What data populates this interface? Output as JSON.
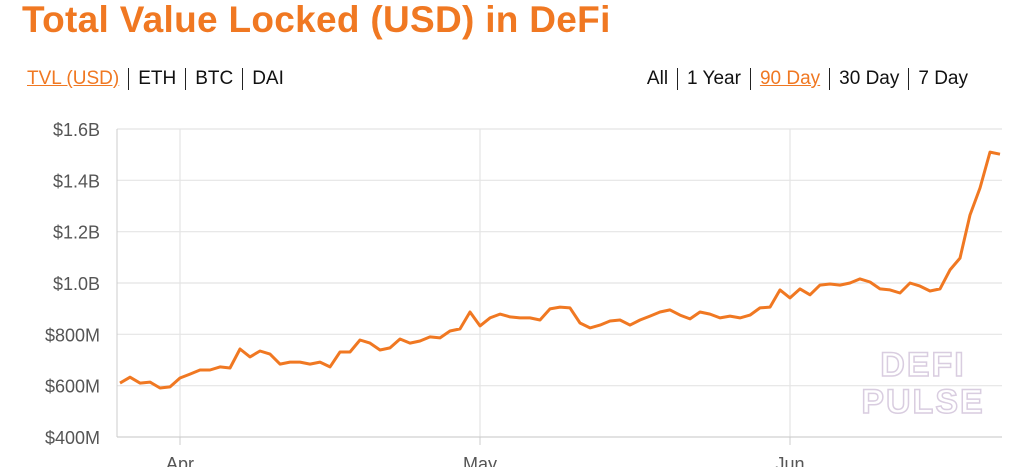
{
  "header": {
    "title": "Total Value Locked (USD) in DeFi"
  },
  "tabs": {
    "left": [
      {
        "label": "TVL (USD)",
        "active": true
      },
      {
        "label": "ETH",
        "active": false
      },
      {
        "label": "BTC",
        "active": false
      },
      {
        "label": "DAI",
        "active": false
      }
    ],
    "right": [
      {
        "label": "All",
        "active": false
      },
      {
        "label": "1 Year",
        "active": false
      },
      {
        "label": "90 Day",
        "active": true
      },
      {
        "label": "30 Day",
        "active": false
      },
      {
        "label": "7 Day",
        "active": false
      }
    ]
  },
  "chart_data": {
    "type": "line",
    "color": "#f07822",
    "grid": true,
    "watermark": [
      "DEFI",
      "PULSE"
    ],
    "categories": [
      null,
      null,
      null,
      null,
      null,
      null,
      "Apr",
      null,
      null,
      null,
      null,
      null,
      null,
      null,
      null,
      null,
      null,
      null,
      null,
      null,
      null,
      null,
      null,
      null,
      null,
      null,
      null,
      null,
      null,
      null,
      null,
      null,
      null,
      null,
      null,
      null,
      "May",
      null,
      null,
      null,
      null,
      null,
      null,
      null,
      null,
      null,
      null,
      null,
      null,
      null,
      null,
      null,
      null,
      null,
      null,
      null,
      null,
      null,
      null,
      null,
      null,
      null,
      null,
      null,
      null,
      null,
      null,
      "Jun",
      null,
      null,
      null,
      null,
      null,
      null,
      null,
      null,
      null,
      null,
      null,
      null,
      null,
      null,
      null,
      null,
      null,
      null,
      null,
      null,
      null
    ],
    "values": [
      610000000,
      633000000,
      610000000,
      614000000,
      591000000,
      595000000,
      630000000,
      645000000,
      661000000,
      661000000,
      673000000,
      669000000,
      743000000,
      712000000,
      735000000,
      723000000,
      684000000,
      692000000,
      692000000,
      684000000,
      692000000,
      673000000,
      731000000,
      731000000,
      778000000,
      766000000,
      739000000,
      747000000,
      782000000,
      766000000,
      774000000,
      790000000,
      786000000,
      813000000,
      821000000,
      887000000,
      833000000,
      864000000,
      879000000,
      868000000,
      864000000,
      864000000,
      856000000,
      899000000,
      906000000,
      903000000,
      844000000,
      825000000,
      836000000,
      852000000,
      856000000,
      836000000,
      856000000,
      871000000,
      887000000,
      895000000,
      875000000,
      860000000,
      887000000,
      879000000,
      864000000,
      871000000,
      864000000,
      875000000,
      903000000,
      906000000,
      973000000,
      942000000,
      977000000,
      954000000,
      992000000,
      996000000,
      992000000,
      1000000000,
      1016000000,
      1004000000,
      977000000,
      973000000,
      961000000,
      1000000000,
      988000000,
      969000000,
      977000000,
      1051000000,
      1097000000,
      1265000000,
      1370000000,
      1510000000,
      1502000000
    ],
    "ylim": [
      400000000,
      1600000000
    ],
    "yticks": [
      {
        "value": 400000000,
        "label": "$400M"
      },
      {
        "value": 600000000,
        "label": "$600M"
      },
      {
        "value": 800000000,
        "label": "$800M"
      },
      {
        "value": 1000000000,
        "label": "$1.0B"
      },
      {
        "value": 1200000000,
        "label": "$1.2B"
      },
      {
        "value": 1400000000,
        "label": "$1.4B"
      },
      {
        "value": 1600000000,
        "label": "$1.6B"
      }
    ]
  }
}
